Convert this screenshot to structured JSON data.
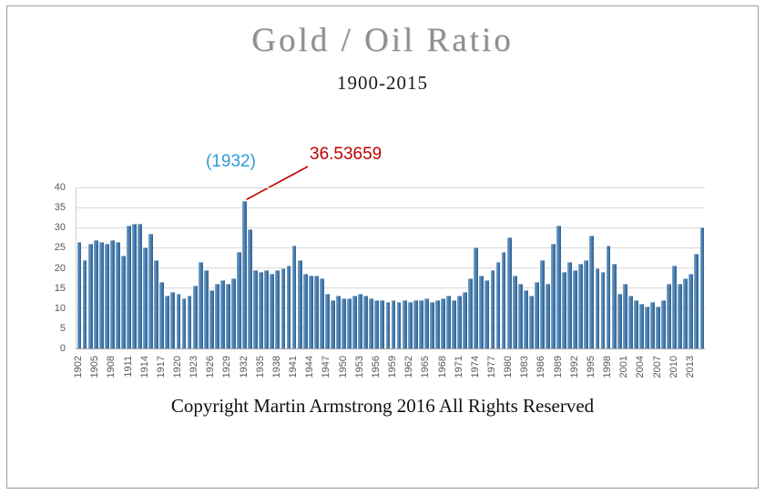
{
  "chart_data": {
    "type": "bar",
    "title": "Gold / Oil Ratio",
    "subtitle": "1900-2015",
    "footer": "Copyright Martin Armstrong 2016 All Rights Reserved",
    "annotation": {
      "year_label": "(1932)",
      "value_label": "36.53659",
      "year_color": "#2e9bd6",
      "value_color": "#c00000",
      "points_to_year": 1932
    },
    "xlabel": "",
    "ylabel": "",
    "ylim": [
      0,
      40
    ],
    "yticks": [
      0,
      5,
      10,
      15,
      20,
      25,
      30,
      35,
      40
    ],
    "x_tick_interval": 3,
    "x_tick_start": 1902,
    "x_tick_end": 2013,
    "grid": true,
    "legend": "none",
    "bar_color_light": "#7fa9d0",
    "bar_color_mid": "#4e80b1",
    "bar_color_dark": "#30628f",
    "years": [
      1902,
      1903,
      1904,
      1905,
      1906,
      1907,
      1908,
      1909,
      1910,
      1911,
      1912,
      1913,
      1914,
      1915,
      1916,
      1917,
      1918,
      1919,
      1920,
      1921,
      1922,
      1923,
      1924,
      1925,
      1926,
      1927,
      1928,
      1929,
      1930,
      1931,
      1932,
      1933,
      1934,
      1935,
      1936,
      1937,
      1938,
      1939,
      1940,
      1941,
      1942,
      1943,
      1944,
      1945,
      1946,
      1947,
      1948,
      1949,
      1950,
      1951,
      1952,
      1953,
      1954,
      1955,
      1956,
      1957,
      1958,
      1959,
      1960,
      1961,
      1962,
      1963,
      1964,
      1965,
      1966,
      1967,
      1968,
      1969,
      1970,
      1971,
      1972,
      1973,
      1974,
      1975,
      1976,
      1977,
      1978,
      1979,
      1980,
      1981,
      1982,
      1983,
      1984,
      1985,
      1986,
      1987,
      1988,
      1989,
      1990,
      1991,
      1992,
      1993,
      1994,
      1995,
      1996,
      1997,
      1998,
      1999,
      2000,
      2001,
      2002,
      2003,
      2004,
      2005,
      2006,
      2007,
      2008,
      2009,
      2010,
      2011,
      2012,
      2013,
      2014,
      2015
    ],
    "values": [
      26.5,
      22,
      26,
      27,
      26.5,
      26,
      27,
      26.5,
      23,
      30.5,
      31,
      31,
      25,
      28.5,
      22,
      16.5,
      13,
      14,
      13.5,
      12.5,
      13,
      15.5,
      21.5,
      19.5,
      14.5,
      16,
      17,
      16,
      17.5,
      24,
      36.53659,
      29.5,
      19.5,
      19,
      19.5,
      18.5,
      19.5,
      20,
      20.5,
      25.5,
      22,
      18.5,
      18,
      18,
      17.5,
      13.5,
      12,
      13,
      12.5,
      12.5,
      13,
      13.5,
      13,
      12.5,
      12,
      12,
      11.5,
      12,
      11.5,
      12,
      11.5,
      12,
      12,
      12.5,
      11.5,
      12,
      12.5,
      13,
      12,
      13,
      14,
      17.5,
      25,
      18,
      17,
      19.5,
      21.5,
      24,
      27.5,
      18,
      16,
      14.5,
      13,
      16.5,
      22,
      16,
      26,
      30.5,
      19,
      21.5,
      19.5,
      21,
      22,
      28,
      20,
      19,
      25.5,
      21,
      13.5,
      16,
      13,
      12,
      11,
      10.5,
      11.5,
      10.5,
      12,
      16,
      20.5,
      16,
      17.5,
      18.5,
      23.5,
      30
    ]
  }
}
